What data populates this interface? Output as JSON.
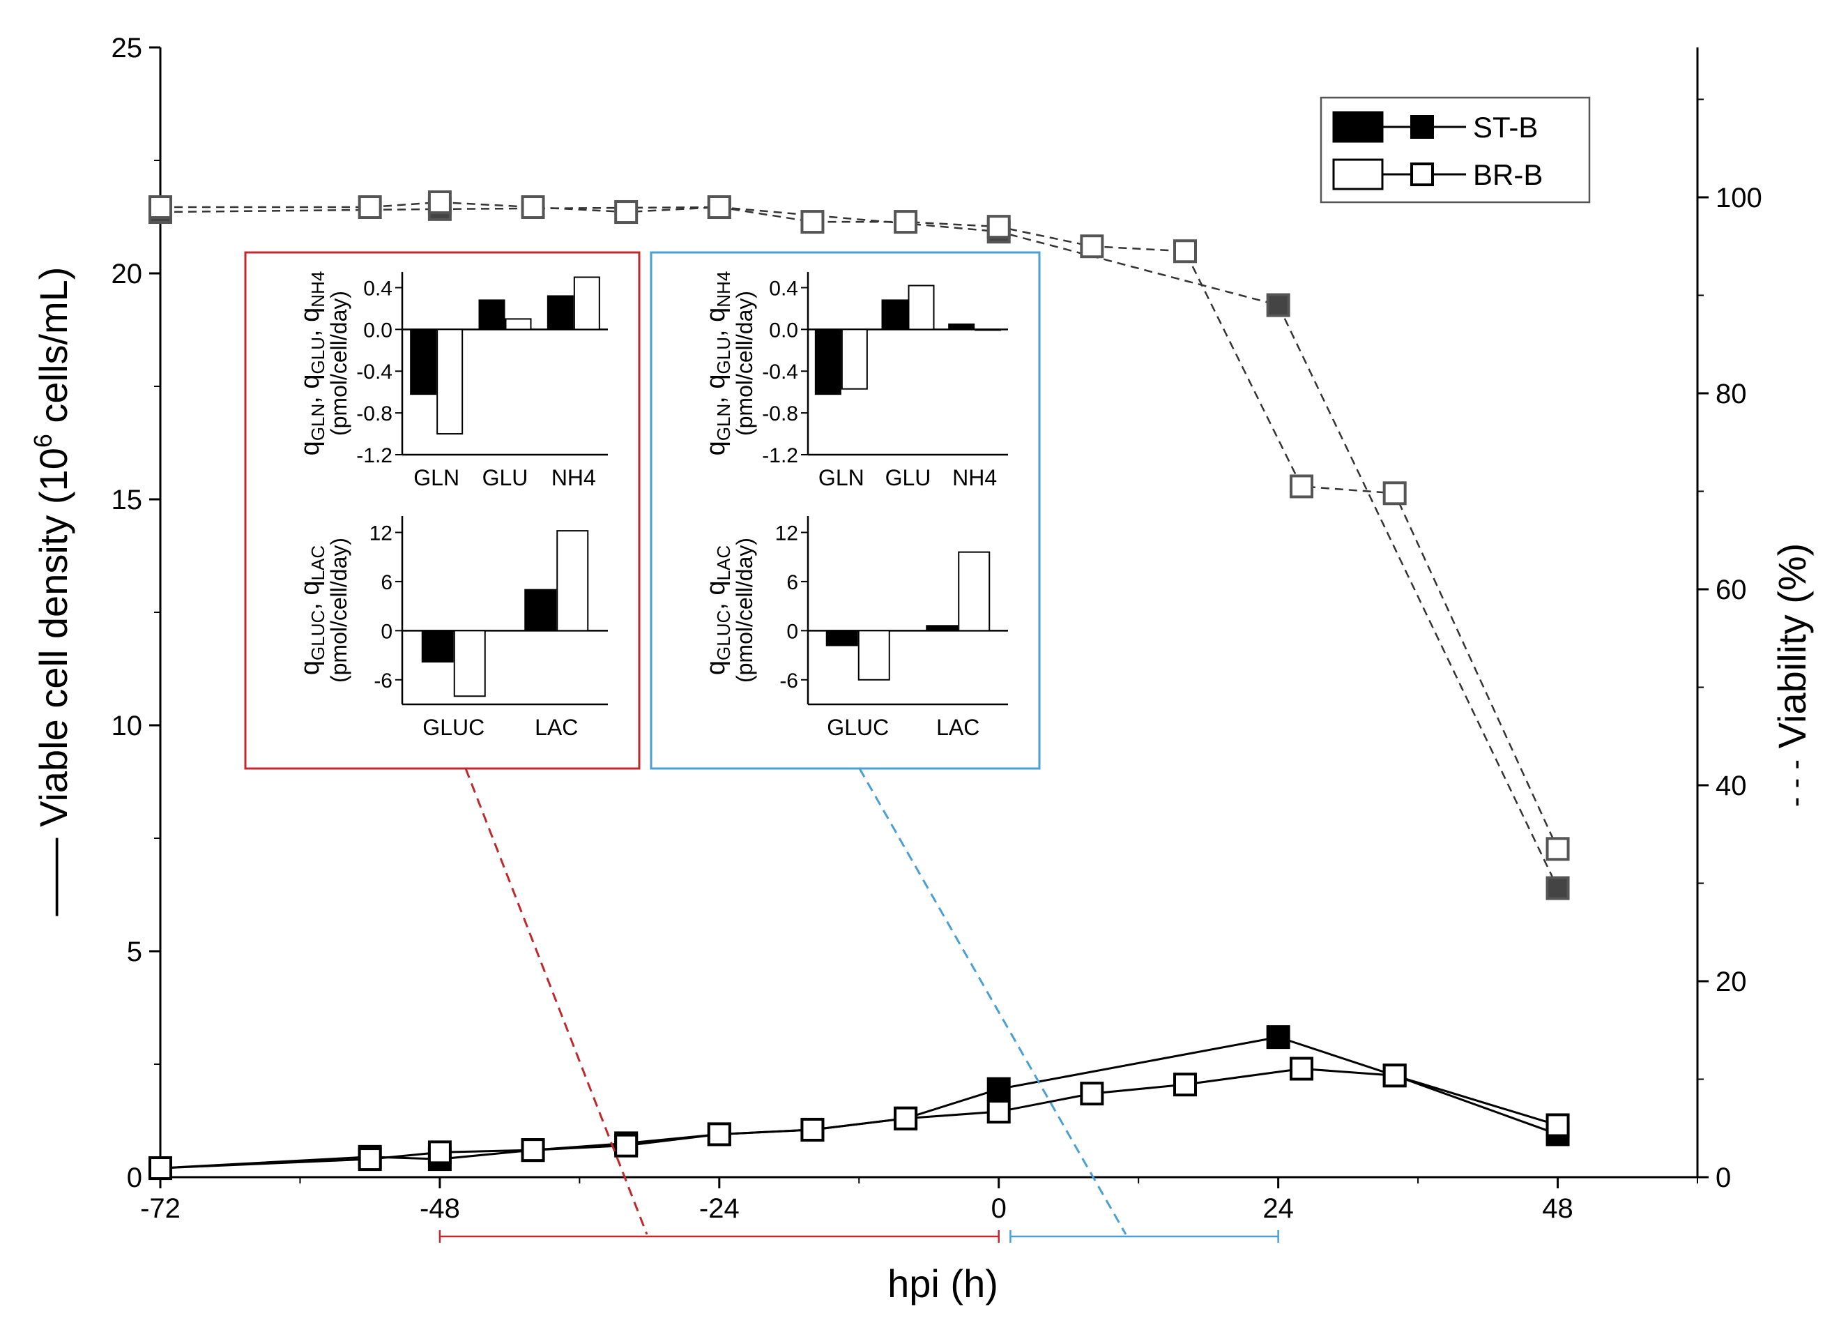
{
  "chart_data": {
    "type": "line",
    "xlabel": "hpi (h)",
    "ylabel_left": "Viable cell density (10",
    "ylabel_left_sup": "6",
    "ylabel_left_tail": " cells/mL)",
    "ylabel_right": "Viability (%)",
    "ylabel_left_marker": "——",
    "ylabel_right_marker": "- - -",
    "xlim": [
      -72,
      60
    ],
    "ylim_left": [
      0,
      25
    ],
    "ylim_right": [
      0,
      115.3
    ],
    "x_ticks": [
      -72,
      -48,
      -24,
      0,
      24,
      48
    ],
    "x_tick_labels": [
      "-72",
      "-48",
      "-24",
      "0",
      "24",
      "48"
    ],
    "y_left_ticks": [
      0,
      5,
      10,
      15,
      20,
      25
    ],
    "y_left_tick_labels": [
      "0",
      "5",
      "10",
      "15",
      "20",
      "25"
    ],
    "y_right_ticks": [
      0,
      20,
      40,
      60,
      80,
      100
    ],
    "y_right_tick_labels": [
      "0",
      "20",
      "40",
      "60",
      "80",
      "100"
    ],
    "legend": [
      {
        "name": "ST-B",
        "fill": "#000000"
      },
      {
        "name": "BR-B",
        "fill": "#ffffff"
      }
    ],
    "series": [
      {
        "name": "ST-B",
        "kind": "density",
        "axis": "left",
        "style": "solid",
        "fill": "#000000",
        "x": [
          -72,
          -54,
          -48,
          -40,
          -32,
          -24,
          -16,
          -8,
          0,
          24,
          34,
          48
        ],
        "values": [
          0.2,
          0.45,
          0.4,
          0.6,
          0.75,
          0.95,
          1.05,
          1.3,
          1.95,
          3.1,
          2.25,
          0.95
        ]
      },
      {
        "name": "BR-B",
        "kind": "density",
        "axis": "left",
        "style": "solid",
        "fill": "#ffffff",
        "x": [
          -72,
          -54,
          -48,
          -40,
          -32,
          -24,
          -16,
          -8,
          0,
          8,
          16,
          26,
          34,
          48
        ],
        "values": [
          0.2,
          0.4,
          0.55,
          0.6,
          0.7,
          0.95,
          1.05,
          1.3,
          1.45,
          1.85,
          2.05,
          2.4,
          2.25,
          1.15
        ]
      },
      {
        "name": "ST-B",
        "kind": "viability",
        "axis": "right",
        "style": "dashed",
        "fill": "#444444",
        "x": [
          -72,
          -48,
          -24,
          0,
          24,
          48
        ],
        "values": [
          98.5,
          98.8,
          99.0,
          96.5,
          89.0,
          29.5
        ]
      },
      {
        "name": "BR-B",
        "kind": "viability",
        "axis": "right",
        "style": "dashed",
        "fill": "#ffffff",
        "x": [
          -72,
          -54,
          -48,
          -40,
          -32,
          -24,
          -16,
          -8,
          0,
          8,
          16,
          26,
          34,
          48
        ],
        "values": [
          99.0,
          99.0,
          99.5,
          99.0,
          98.5,
          99.0,
          97.5,
          97.5,
          97.0,
          95.0,
          94.5,
          70.5,
          69.8,
          33.5
        ]
      }
    ],
    "ranges": [
      {
        "from": -48,
        "to": 0,
        "color": "#c0282d"
      },
      {
        "from": 1,
        "to": 24,
        "color": "#4a9fd4"
      }
    ],
    "insets": [
      {
        "color": "#c0282d",
        "top": {
          "ylabel": "q",
          "ylabel_parts": [
            [
              "GLN"
            ],
            [
              "GLU"
            ],
            [
              "NH4"
            ]
          ],
          "ylabel_sub": "(pmol/cell/day)",
          "ylim": [
            -1.2,
            0.55
          ],
          "ticks": [
            0.4,
            0.0,
            -0.4,
            -0.8,
            -1.2
          ],
          "tick_labels": [
            "0.4",
            "0.0",
            "-0.4",
            "-0.8",
            "-1.2"
          ],
          "categories": [
            "GLN",
            "GLU",
            "NH4"
          ],
          "series": [
            {
              "name": "ST-B",
              "fill": "#000000",
              "values": [
                -0.62,
                0.28,
                0.32
              ]
            },
            {
              "name": "BR-B",
              "fill": "#ffffff",
              "values": [
                -1.0,
                0.1,
                0.5
              ]
            }
          ]
        },
        "bottom": {
          "ylabel": "q",
          "ylabel_parts": [
            [
              "GLUC"
            ],
            [
              "LAC"
            ]
          ],
          "ylabel_sub": "(pmol/cell/day)",
          "ylim": [
            -9,
            14
          ],
          "ticks": [
            12,
            6,
            0,
            -6
          ],
          "tick_labels": [
            "12",
            "6",
            "0",
            "-6"
          ],
          "categories": [
            "GLUC",
            "LAC"
          ],
          "series": [
            {
              "name": "ST-B",
              "fill": "#000000",
              "values": [
                -3.8,
                5.0
              ]
            },
            {
              "name": "BR-B",
              "fill": "#ffffff",
              "values": [
                -8.0,
                12.2
              ]
            }
          ]
        }
      },
      {
        "color": "#4a9fd4",
        "top": {
          "ylabel": "q",
          "ylabel_parts": [
            [
              "GLN"
            ],
            [
              "GLU"
            ],
            [
              "NH4"
            ]
          ],
          "ylabel_sub": "(pmol/cell/day)",
          "ylim": [
            -1.2,
            0.55
          ],
          "ticks": [
            0.4,
            0.0,
            -0.4,
            -0.8,
            -1.2
          ],
          "tick_labels": [
            "0.4",
            "0.0",
            "-0.4",
            "-0.8",
            "-1.2"
          ],
          "categories": [
            "GLN",
            "GLU",
            "NH4"
          ],
          "series": [
            {
              "name": "ST-B",
              "fill": "#000000",
              "values": [
                -0.62,
                0.28,
                0.05
              ]
            },
            {
              "name": "BR-B",
              "fill": "#ffffff",
              "values": [
                -0.57,
                0.42,
                0.0
              ]
            }
          ]
        },
        "bottom": {
          "ylabel": "q",
          "ylabel_parts": [
            [
              "GLUC"
            ],
            [
              "LAC"
            ]
          ],
          "ylabel_sub": "(pmol/cell/day)",
          "ylim": [
            -9,
            14
          ],
          "ticks": [
            12,
            6,
            0,
            -6
          ],
          "tick_labels": [
            "12",
            "6",
            "0",
            "-6"
          ],
          "categories": [
            "GLUC",
            "LAC"
          ],
          "series": [
            {
              "name": "ST-B",
              "fill": "#000000",
              "values": [
                -1.8,
                0.6
              ]
            },
            {
              "name": "BR-B",
              "fill": "#ffffff",
              "values": [
                -6.0,
                9.6
              ]
            }
          ]
        }
      }
    ]
  }
}
